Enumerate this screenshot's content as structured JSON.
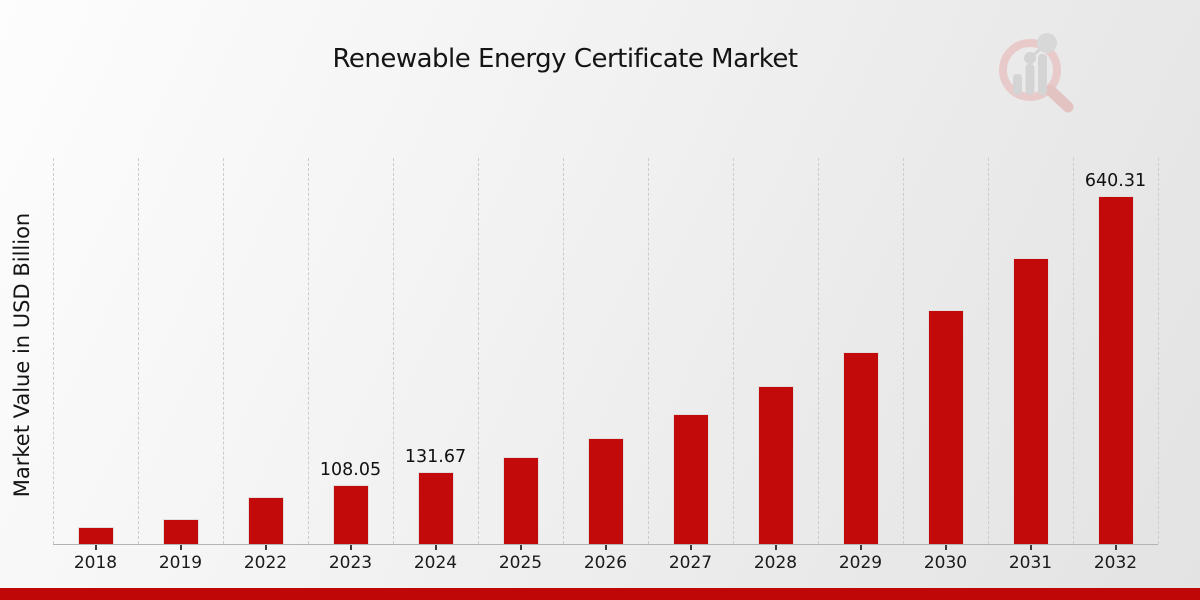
{
  "title": "Renewable Energy Certificate Market",
  "y_axis_label": "Market Value in USD Billion",
  "watermark_icon": "magnifier-bar-chart-logo",
  "colors": {
    "bar": "#c20a0a",
    "bar_edge": "#e2dede",
    "footer_strip": "#bf0707",
    "gridline": "#cccccc",
    "axis_line": "#b3b3b3",
    "text": "#151515",
    "watermark_ring": "#e8caca",
    "watermark_bars": "#d4d4d4"
  },
  "chart_data": {
    "type": "bar",
    "title": "Renewable Energy Certificate Market",
    "ylabel": "Market Value in USD Billion",
    "xlabel": "",
    "categories": [
      "2018",
      "2019",
      "2022",
      "2023",
      "2024",
      "2025",
      "2026",
      "2027",
      "2028",
      "2029",
      "2030",
      "2031",
      "2032"
    ],
    "values": [
      30.5,
      46.6,
      86.5,
      108.05,
      131.67,
      160.45,
      195.55,
      238.29,
      290.38,
      353.85,
      431.21,
      525.48,
      640.31
    ],
    "value_labels_shown": [
      "",
      "",
      "",
      "108.05",
      "131.67",
      "",
      "",
      "",
      "",
      "",
      "",
      "",
      "640.31"
    ],
    "labeled_values": {
      "2023": 108.05,
      "2024": 131.67,
      "2032": 640.31
    },
    "note": "bars without printed labels are estimated from bar heights",
    "ylim": [
      0,
      710
    ],
    "grid": "vertical-dashed",
    "legend": "none"
  }
}
